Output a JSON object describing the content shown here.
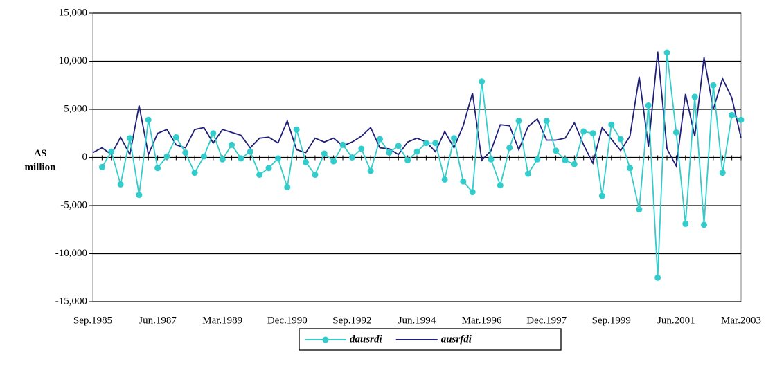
{
  "chart_data": {
    "type": "line",
    "y_label": "A$ million",
    "categories": [
      "Sep.1985",
      null,
      null,
      null,
      null,
      null,
      null,
      "Jun.1987",
      null,
      null,
      null,
      null,
      null,
      null,
      "Mar.1989",
      null,
      null,
      null,
      null,
      null,
      null,
      "Dec.1990",
      null,
      null,
      null,
      null,
      null,
      null,
      "Sep.1992",
      null,
      null,
      null,
      null,
      null,
      null,
      "Jun.1994",
      null,
      null,
      null,
      null,
      null,
      null,
      "Mar.1996",
      null,
      null,
      null,
      null,
      null,
      null,
      "Dec.1997",
      null,
      null,
      null,
      null,
      null,
      null,
      "Sep.1999",
      null,
      null,
      null,
      null,
      null,
      null,
      "Jun.2001",
      null,
      null,
      null,
      null,
      null,
      null,
      "Mar.2003"
    ],
    "series": [
      {
        "name": "dausrdi",
        "color": "#33cccc",
        "markers": true,
        "values": [
          null,
          -1000,
          600,
          -2800,
          2000,
          -3900,
          3900,
          -1100,
          100,
          2100,
          500,
          -1600,
          100,
          2500,
          -200,
          1300,
          -100,
          600,
          -1800,
          -1100,
          -100,
          -3100,
          2900,
          -500,
          -1800,
          400,
          -400,
          1300,
          0,
          900,
          -1400,
          1900,
          500,
          1200,
          -300,
          600,
          1500,
          1500,
          -2300,
          2000,
          -2500,
          -3600,
          7900,
          -200,
          -2900,
          1000,
          3800,
          -1700,
          -200,
          3800,
          700,
          -300,
          -700,
          2700,
          2500,
          -4000,
          3400,
          1900,
          -1100,
          -5400,
          5400,
          -12500,
          10900,
          2600,
          -6900,
          6300,
          -7000,
          7500,
          -1600,
          4400,
          3900
        ]
      },
      {
        "name": "ausrfdi",
        "color": "#1f1f7a",
        "markers": false,
        "values": [
          500,
          1000,
          300,
          2100,
          300,
          5400,
          300,
          2500,
          2900,
          1300,
          1000,
          2900,
          3100,
          1500,
          2900,
          2600,
          2300,
          1000,
          2000,
          2100,
          1500,
          3800,
          800,
          500,
          2000,
          1600,
          2000,
          1200,
          1600,
          2200,
          3100,
          1000,
          900,
          300,
          1600,
          2000,
          1600,
          600,
          2700,
          1000,
          3300,
          6700,
          -300,
          700,
          3400,
          3300,
          800,
          3200,
          4000,
          1800,
          1800,
          2000,
          3600,
          1300,
          -600,
          3100,
          1900,
          700,
          2200,
          8400,
          1100,
          11000,
          900,
          -900,
          6600,
          2200,
          10400,
          5000,
          8200,
          6200,
          2000
        ]
      }
    ],
    "ylim": [
      -15000,
      15000
    ],
    "yticks": [
      {
        "value": -15000,
        "label": "-15,000"
      },
      {
        "value": -10000,
        "label": "-10,000"
      },
      {
        "value": -5000,
        "label": "-5,000"
      },
      0,
      {
        "value": 5000,
        "label": "5,000"
      },
      {
        "value": 10000,
        "label": "10,000"
      },
      {
        "value": 15000,
        "label": "15,000"
      }
    ],
    "grid": true,
    "legend": "bottom"
  }
}
